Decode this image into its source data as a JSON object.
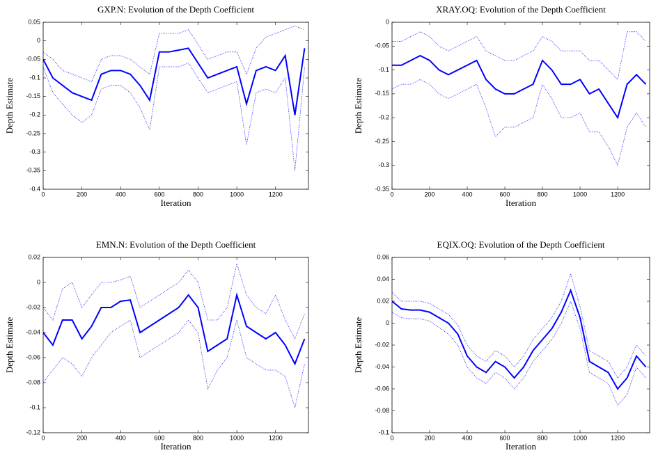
{
  "chart_data": [
    {
      "type": "line",
      "title": "GXP.N: Evolution of the Depth Coefficient",
      "xlabel": "Iteration",
      "ylabel": "Depth Estimate",
      "x": [
        0,
        50,
        100,
        150,
        200,
        250,
        300,
        350,
        400,
        450,
        500,
        550,
        600,
        650,
        700,
        750,
        800,
        850,
        900,
        950,
        1000,
        1050,
        1100,
        1150,
        1200,
        1250,
        1300,
        1350
      ],
      "xlim": [
        0,
        1370
      ],
      "xticks": [
        0,
        200,
        400,
        600,
        800,
        1000,
        1200
      ],
      "ylim": [
        -0.4,
        0.05
      ],
      "yticks": [
        -0.4,
        -0.35,
        -0.3,
        -0.25,
        -0.2,
        -0.15,
        -0.1,
        -0.05,
        0,
        0.05
      ],
      "series": [
        {
          "color": "#0000ff",
          "style": "solid",
          "values": [
            -0.05,
            -0.1,
            -0.12,
            -0.14,
            -0.15,
            -0.16,
            -0.09,
            -0.08,
            -0.08,
            -0.09,
            -0.12,
            -0.16,
            -0.03,
            -0.03,
            -0.025,
            -0.02,
            -0.06,
            -0.1,
            -0.09,
            -0.08,
            -0.07,
            -0.17,
            -0.08,
            -0.07,
            -0.08,
            -0.04,
            -0.2,
            -0.02
          ]
        },
        {
          "color": "#0000ff",
          "style": "dotted",
          "values": [
            -0.03,
            -0.05,
            -0.08,
            -0.09,
            -0.1,
            -0.11,
            -0.05,
            -0.04,
            -0.04,
            -0.05,
            -0.07,
            -0.09,
            0.02,
            0.02,
            0.02,
            0.03,
            -0.01,
            -0.05,
            -0.04,
            -0.03,
            -0.03,
            -0.09,
            -0.02,
            0.01,
            0.02,
            0.03,
            0.04,
            0.03
          ]
        },
        {
          "color": "#0000ff",
          "style": "dotted",
          "values": [
            -0.07,
            -0.14,
            -0.17,
            -0.2,
            -0.22,
            -0.2,
            -0.13,
            -0.12,
            -0.12,
            -0.14,
            -0.18,
            -0.24,
            -0.07,
            -0.07,
            -0.07,
            -0.06,
            -0.1,
            -0.14,
            -0.13,
            -0.12,
            -0.11,
            -0.28,
            -0.14,
            -0.13,
            -0.14,
            -0.1,
            -0.35,
            -0.07
          ]
        }
      ]
    },
    {
      "type": "line",
      "title": "XRAY.OQ: Evolution of the Depth Coefficient",
      "xlabel": "Iteration",
      "ylabel": "Depth Estimate",
      "x": [
        0,
        50,
        100,
        150,
        200,
        250,
        300,
        350,
        400,
        450,
        500,
        550,
        600,
        650,
        700,
        750,
        800,
        850,
        900,
        950,
        1000,
        1050,
        1100,
        1150,
        1200,
        1250,
        1300,
        1350
      ],
      "xlim": [
        0,
        1370
      ],
      "xticks": [
        0,
        200,
        400,
        600,
        800,
        1000,
        1200
      ],
      "ylim": [
        -0.35,
        0
      ],
      "yticks": [
        -0.35,
        -0.3,
        -0.25,
        -0.2,
        -0.15,
        -0.1,
        -0.05,
        0
      ],
      "series": [
        {
          "color": "#0000ff",
          "style": "solid",
          "values": [
            -0.09,
            -0.09,
            -0.08,
            -0.07,
            -0.08,
            -0.1,
            -0.11,
            -0.1,
            -0.09,
            -0.08,
            -0.12,
            -0.14,
            -0.15,
            -0.15,
            -0.14,
            -0.13,
            -0.08,
            -0.1,
            -0.13,
            -0.13,
            -0.12,
            -0.15,
            -0.14,
            -0.17,
            -0.2,
            -0.13,
            -0.11,
            -0.13
          ]
        },
        {
          "color": "#0000ff",
          "style": "dotted",
          "values": [
            -0.04,
            -0.04,
            -0.03,
            -0.02,
            -0.03,
            -0.05,
            -0.06,
            -0.05,
            -0.04,
            -0.03,
            -0.06,
            -0.07,
            -0.08,
            -0.08,
            -0.07,
            -0.06,
            -0.03,
            -0.04,
            -0.06,
            -0.06,
            -0.06,
            -0.08,
            -0.08,
            -0.1,
            -0.12,
            -0.02,
            -0.02,
            -0.04
          ]
        },
        {
          "color": "#0000ff",
          "style": "dotted",
          "values": [
            -0.14,
            -0.13,
            -0.13,
            -0.12,
            -0.13,
            -0.15,
            -0.16,
            -0.15,
            -0.14,
            -0.13,
            -0.18,
            -0.24,
            -0.22,
            -0.22,
            -0.21,
            -0.2,
            -0.13,
            -0.16,
            -0.2,
            -0.2,
            -0.19,
            -0.23,
            -0.23,
            -0.26,
            -0.3,
            -0.22,
            -0.19,
            -0.22
          ]
        }
      ]
    },
    {
      "type": "line",
      "title": "EMN.N: Evolution of the Depth Coefficient",
      "xlabel": "Iteration",
      "ylabel": "Depth Estimate",
      "x": [
        0,
        50,
        100,
        150,
        200,
        250,
        300,
        350,
        400,
        450,
        500,
        550,
        600,
        650,
        700,
        750,
        800,
        850,
        900,
        950,
        1000,
        1050,
        1100,
        1150,
        1200,
        1250,
        1300,
        1350
      ],
      "xlim": [
        0,
        1370
      ],
      "xticks": [
        0,
        200,
        400,
        600,
        800,
        1000,
        1200
      ],
      "ylim": [
        -0.12,
        0.02
      ],
      "yticks": [
        -0.12,
        -0.1,
        -0.08,
        -0.06,
        -0.04,
        -0.02,
        0,
        0.02
      ],
      "series": [
        {
          "color": "#0000ff",
          "style": "solid",
          "values": [
            -0.04,
            -0.05,
            -0.03,
            -0.03,
            -0.045,
            -0.035,
            -0.02,
            -0.02,
            -0.015,
            -0.014,
            -0.04,
            -0.035,
            -0.03,
            -0.025,
            -0.02,
            -0.01,
            -0.02,
            -0.055,
            -0.05,
            -0.045,
            -0.01,
            -0.035,
            -0.04,
            -0.045,
            -0.04,
            -0.05,
            -0.065,
            -0.045
          ]
        },
        {
          "color": "#0000ff",
          "style": "dotted",
          "values": [
            -0.02,
            -0.03,
            -0.005,
            0,
            -0.02,
            -0.01,
            0,
            0,
            0.002,
            0.005,
            -0.02,
            -0.015,
            -0.01,
            -0.005,
            0,
            0.01,
            0,
            -0.03,
            -0.03,
            -0.02,
            0.015,
            -0.01,
            -0.02,
            -0.025,
            -0.01,
            -0.03,
            -0.045,
            -0.025
          ]
        },
        {
          "color": "#0000ff",
          "style": "dotted",
          "values": [
            -0.08,
            -0.07,
            -0.06,
            -0.065,
            -0.075,
            -0.06,
            -0.05,
            -0.04,
            -0.035,
            -0.03,
            -0.06,
            -0.055,
            -0.05,
            -0.045,
            -0.04,
            -0.03,
            -0.04,
            -0.085,
            -0.07,
            -0.06,
            -0.03,
            -0.06,
            -0.065,
            -0.07,
            -0.07,
            -0.075,
            -0.1,
            -0.065
          ]
        }
      ]
    },
    {
      "type": "line",
      "title": "EQIX.OQ: Evolution of the Depth Coefficient",
      "xlabel": "Iteration",
      "ylabel": "Depth Estimate",
      "x": [
        0,
        50,
        100,
        150,
        200,
        250,
        300,
        350,
        400,
        450,
        500,
        550,
        600,
        650,
        700,
        750,
        800,
        850,
        900,
        950,
        1000,
        1050,
        1100,
        1150,
        1200,
        1250,
        1300,
        1350
      ],
      "xlim": [
        0,
        1370
      ],
      "xticks": [
        0,
        200,
        400,
        600,
        800,
        1000,
        1200
      ],
      "ylim": [
        -0.1,
        0.06
      ],
      "yticks": [
        -0.1,
        -0.08,
        -0.06,
        -0.04,
        -0.02,
        0,
        0.02,
        0.04,
        0.06
      ],
      "series": [
        {
          "color": "#0000ff",
          "style": "solid",
          "values": [
            0.02,
            0.013,
            0.012,
            0.012,
            0.01,
            0.005,
            0,
            -0.01,
            -0.03,
            -0.04,
            -0.045,
            -0.035,
            -0.04,
            -0.05,
            -0.04,
            -0.025,
            -0.015,
            -0.005,
            0.01,
            0.03,
            0.005,
            -0.035,
            -0.04,
            -0.045,
            -0.06,
            -0.05,
            -0.03,
            -0.04
          ]
        },
        {
          "color": "#0000ff",
          "style": "dotted",
          "values": [
            0.028,
            0.02,
            0.02,
            0.02,
            0.018,
            0.013,
            0.008,
            -0.002,
            -0.02,
            -0.03,
            -0.035,
            -0.025,
            -0.03,
            -0.04,
            -0.03,
            -0.015,
            -0.005,
            0.005,
            0.02,
            0.045,
            0.015,
            -0.025,
            -0.03,
            -0.035,
            -0.05,
            -0.04,
            -0.02,
            -0.03
          ]
        },
        {
          "color": "#0000ff",
          "style": "dotted",
          "values": [
            0.01,
            0.005,
            0.004,
            0.004,
            0.002,
            -0.004,
            -0.01,
            -0.02,
            -0.04,
            -0.05,
            -0.055,
            -0.045,
            -0.05,
            -0.06,
            -0.05,
            -0.035,
            -0.025,
            -0.015,
            0,
            0.02,
            -0.005,
            -0.045,
            -0.05,
            -0.055,
            -0.075,
            -0.065,
            -0.04,
            -0.05
          ]
        }
      ]
    }
  ]
}
